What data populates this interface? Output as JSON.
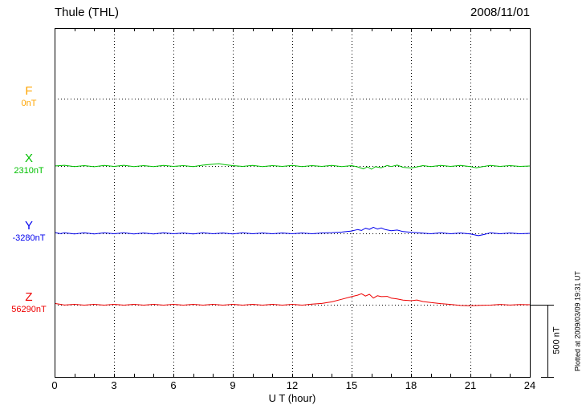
{
  "chart_data": {
    "type": "line",
    "title": "Thule (THL)",
    "date": "2008/11/01",
    "xlabel": "U T (hour)",
    "x_range": [
      0,
      24
    ],
    "x_ticks": [
      0,
      3,
      6,
      9,
      12,
      15,
      18,
      21,
      24
    ],
    "y_unit": "nT",
    "scale_bar": {
      "label": "500 nT",
      "value_nT": 500
    },
    "plotted_note": "Plotted at 2009/03/09 19:31 UT",
    "points_format": "[hour_UT, deviation_in_nT_from_baseline]",
    "series": [
      {
        "name": "F",
        "baseline_label": "0nT",
        "baseline_nT": 0,
        "color": "#FFA500",
        "points": []
      },
      {
        "name": "X",
        "baseline_label": "2310nT",
        "baseline_nT": 2310,
        "color": "#00C000",
        "points": [
          [
            0,
            0
          ],
          [
            0.5,
            5
          ],
          [
            1,
            -4
          ],
          [
            1.5,
            3
          ],
          [
            2,
            -5
          ],
          [
            2.5,
            4
          ],
          [
            3,
            -3
          ],
          [
            3.5,
            5
          ],
          [
            4,
            -4
          ],
          [
            4.5,
            3
          ],
          [
            5,
            -4
          ],
          [
            5.5,
            4
          ],
          [
            6,
            -3
          ],
          [
            6.5,
            3
          ],
          [
            7,
            -4
          ],
          [
            7.5,
            6
          ],
          [
            8,
            12
          ],
          [
            8.3,
            16
          ],
          [
            8.6,
            9
          ],
          [
            9,
            3
          ],
          [
            9.5,
            -3
          ],
          [
            10,
            4
          ],
          [
            10.5,
            -4
          ],
          [
            11,
            3
          ],
          [
            11.5,
            -3
          ],
          [
            12,
            4
          ],
          [
            12.5,
            -4
          ],
          [
            13,
            3
          ],
          [
            13.5,
            -3
          ],
          [
            14,
            4
          ],
          [
            14.5,
            -4
          ],
          [
            15,
            3
          ],
          [
            15.3,
            -6
          ],
          [
            15.6,
            -20
          ],
          [
            15.8,
            -6
          ],
          [
            16,
            -22
          ],
          [
            16.2,
            -5
          ],
          [
            16.5,
            -12
          ],
          [
            16.8,
            4
          ],
          [
            17,
            -4
          ],
          [
            17.3,
            6
          ],
          [
            17.6,
            -9
          ],
          [
            18,
            -14
          ],
          [
            18.3,
            -6
          ],
          [
            18.6,
            3
          ],
          [
            19,
            -4
          ],
          [
            19.5,
            4
          ],
          [
            20,
            -3
          ],
          [
            20.5,
            4
          ],
          [
            21,
            -4
          ],
          [
            21.3,
            -12
          ],
          [
            21.6,
            -5
          ],
          [
            22,
            4
          ],
          [
            22.5,
            -3
          ],
          [
            23,
            3
          ],
          [
            23.5,
            -3
          ],
          [
            24,
            0
          ]
        ]
      },
      {
        "name": "Y",
        "baseline_label": "-3280nT",
        "baseline_nT": -3280,
        "color": "#0000EE",
        "points": [
          [
            0,
            6
          ],
          [
            0.3,
            -2
          ],
          [
            0.5,
            4
          ],
          [
            1,
            -4
          ],
          [
            1.5,
            4
          ],
          [
            2,
            -4
          ],
          [
            2.5,
            4
          ],
          [
            3,
            -3
          ],
          [
            3.5,
            4
          ],
          [
            4,
            -4
          ],
          [
            4.5,
            3
          ],
          [
            5,
            -4
          ],
          [
            5.5,
            4
          ],
          [
            6,
            -3
          ],
          [
            6.5,
            3
          ],
          [
            7,
            -4
          ],
          [
            7.5,
            4
          ],
          [
            8,
            -3
          ],
          [
            8.5,
            3
          ],
          [
            9,
            -4
          ],
          [
            9.5,
            4
          ],
          [
            10,
            -3
          ],
          [
            10.5,
            3
          ],
          [
            11,
            -3
          ],
          [
            11.5,
            3
          ],
          [
            12,
            -3
          ],
          [
            12.5,
            3
          ],
          [
            13,
            -3
          ],
          [
            13.5,
            3
          ],
          [
            14,
            5
          ],
          [
            14.5,
            9
          ],
          [
            15,
            16
          ],
          [
            15.3,
            26
          ],
          [
            15.5,
            20
          ],
          [
            15.7,
            36
          ],
          [
            15.9,
            28
          ],
          [
            16.1,
            42
          ],
          [
            16.3,
            30
          ],
          [
            16.5,
            38
          ],
          [
            16.7,
            26
          ],
          [
            17,
            18
          ],
          [
            17.3,
            23
          ],
          [
            17.6,
            12
          ],
          [
            18,
            8
          ],
          [
            18.5,
            3
          ],
          [
            19,
            -3
          ],
          [
            19.5,
            4
          ],
          [
            20,
            -3
          ],
          [
            20.5,
            3
          ],
          [
            21,
            -4
          ],
          [
            21.4,
            -16
          ],
          [
            21.7,
            -8
          ],
          [
            22,
            4
          ],
          [
            22.5,
            -3
          ],
          [
            23,
            3
          ],
          [
            23.5,
            -3
          ],
          [
            24,
            0
          ]
        ]
      },
      {
        "name": "Z",
        "baseline_label": "56290nT",
        "baseline_nT": 56290,
        "color": "#EE0000",
        "points": [
          [
            0,
            9
          ],
          [
            0.3,
            3
          ],
          [
            0.5,
            -2
          ],
          [
            1,
            3
          ],
          [
            1.5,
            -3
          ],
          [
            2,
            3
          ],
          [
            2.5,
            -3
          ],
          [
            3,
            3
          ],
          [
            3.5,
            -3
          ],
          [
            4,
            3
          ],
          [
            4.5,
            -3
          ],
          [
            5,
            3
          ],
          [
            5.5,
            -3
          ],
          [
            6,
            3
          ],
          [
            6.5,
            -3
          ],
          [
            7,
            3
          ],
          [
            7.5,
            -3
          ],
          [
            8,
            3
          ],
          [
            8.5,
            -3
          ],
          [
            9,
            3
          ],
          [
            9.5,
            -3
          ],
          [
            10,
            3
          ],
          [
            10.5,
            -3
          ],
          [
            11,
            3
          ],
          [
            11.5,
            -3
          ],
          [
            12,
            3
          ],
          [
            12.5,
            -3
          ],
          [
            13,
            4
          ],
          [
            13.5,
            9
          ],
          [
            14,
            20
          ],
          [
            14.5,
            38
          ],
          [
            15,
            56
          ],
          [
            15.3,
            66
          ],
          [
            15.5,
            76
          ],
          [
            15.7,
            60
          ],
          [
            15.9,
            72
          ],
          [
            16.1,
            46
          ],
          [
            16.3,
            62
          ],
          [
            16.5,
            56
          ],
          [
            16.8,
            58
          ],
          [
            17,
            46
          ],
          [
            17.3,
            40
          ],
          [
            17.6,
            32
          ],
          [
            18,
            28
          ],
          [
            18.3,
            33
          ],
          [
            18.6,
            22
          ],
          [
            19,
            15
          ],
          [
            19.5,
            8
          ],
          [
            20,
            2
          ],
          [
            20.5,
            -5
          ],
          [
            21,
            -7
          ],
          [
            21.5,
            -4
          ],
          [
            22,
            -3
          ],
          [
            22.5,
            2
          ],
          [
            23,
            -2
          ],
          [
            23.5,
            1
          ],
          [
            24,
            0
          ]
        ]
      }
    ]
  }
}
